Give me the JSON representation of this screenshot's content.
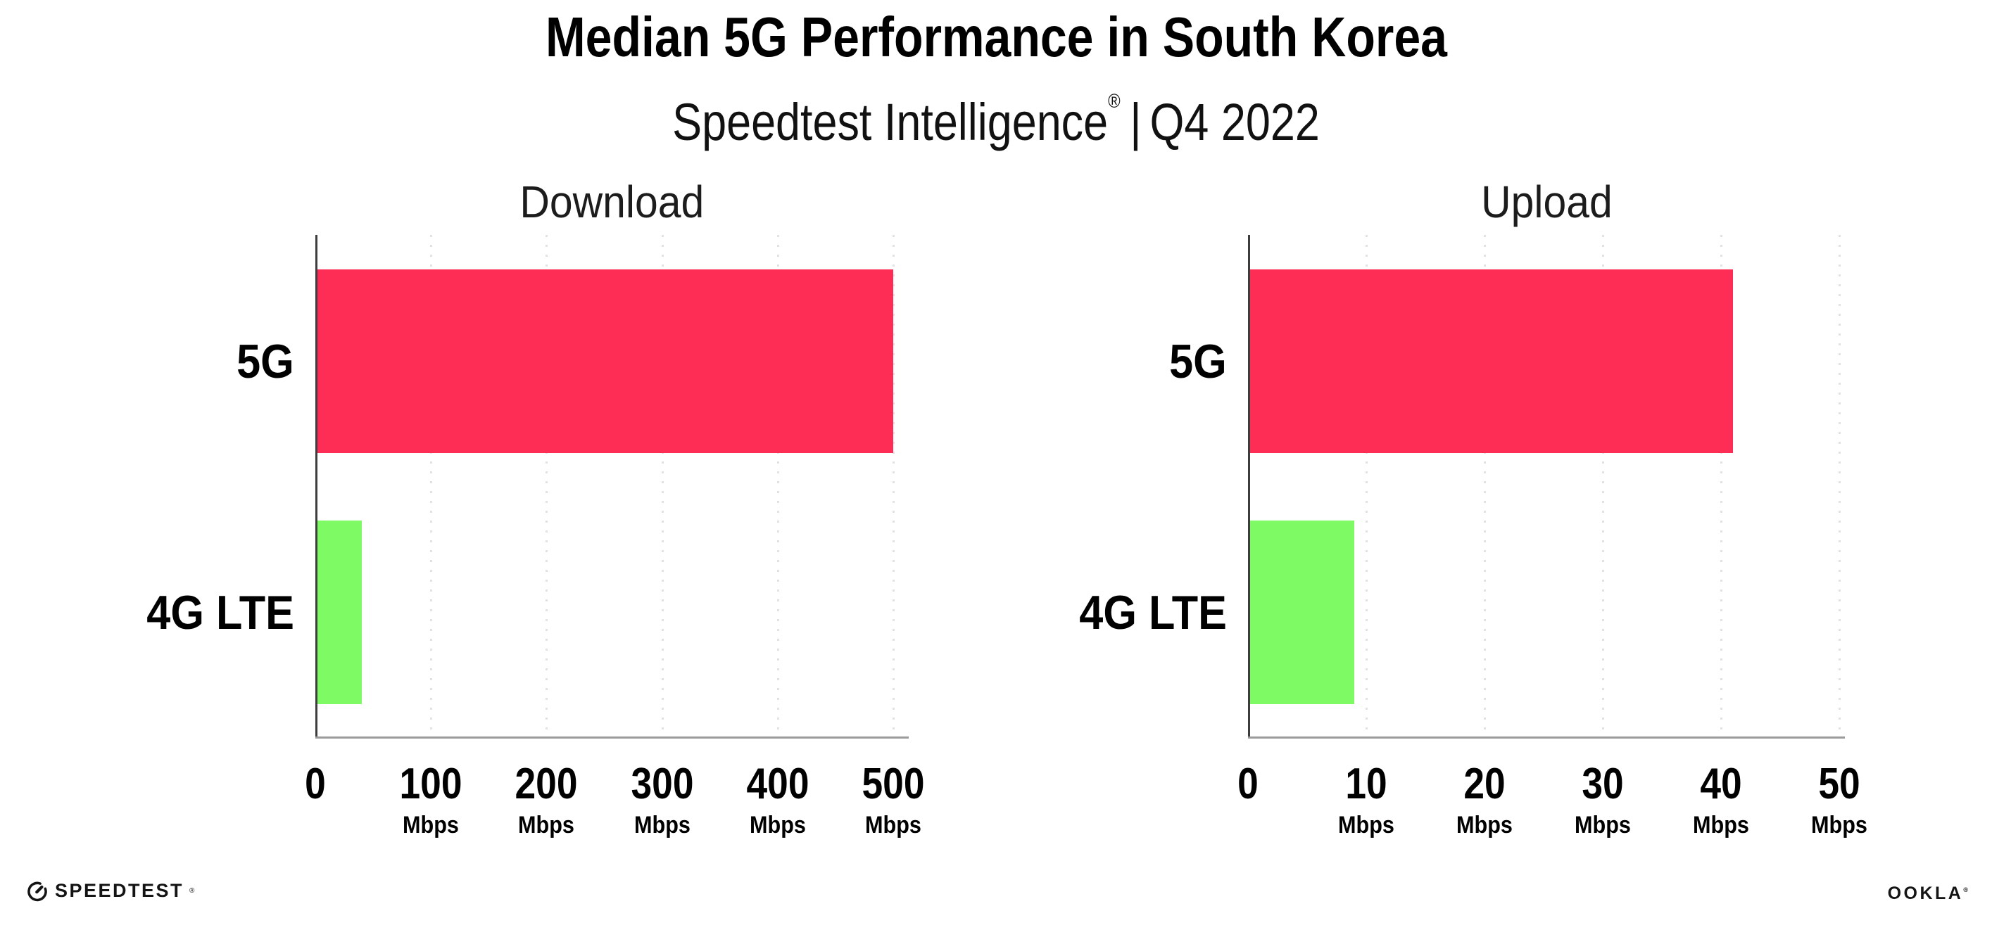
{
  "header": {
    "title": "Median 5G Performance in South Korea",
    "subtitle_brand": "Speedtest Intelligence",
    "subtitle_reg": "®",
    "subtitle_sep": "|",
    "subtitle_period": "Q4 2022"
  },
  "chart_data": [
    {
      "type": "bar",
      "orientation": "horizontal",
      "title": "Download",
      "categories": [
        "5G",
        "4G LTE"
      ],
      "values": [
        500,
        40
      ],
      "unit": "Mbps",
      "xticks": [
        0,
        100,
        200,
        300,
        400,
        500
      ],
      "xlim": [
        0,
        513
      ],
      "grid": "dotted-vertical",
      "legend": "none",
      "bar_colors": {
        "5G": "#fe2d56",
        "4G LTE": "#7dfa64"
      }
    },
    {
      "type": "bar",
      "orientation": "horizontal",
      "title": "Upload",
      "categories": [
        "5G",
        "4G LTE"
      ],
      "values": [
        41,
        9
      ],
      "unit": "Mbps",
      "xticks": [
        0,
        10,
        20,
        30,
        40,
        50
      ],
      "xlim": [
        0,
        50.5
      ],
      "grid": "dotted-vertical",
      "legend": "none",
      "bar_colors": {
        "5G": "#fe2d56",
        "4G LTE": "#7dfa64"
      }
    }
  ],
  "footer": {
    "speedtest_label": "SPEEDTEST",
    "speedtest_reg": "®",
    "ookla_label": "OOKLA",
    "ookla_reg": "®"
  },
  "colors": {
    "background": "#ffffff",
    "bar_5g": "#fe2d56",
    "bar_4g_lte": "#7dfa64",
    "axis_y": "#3d3d3d",
    "axis_x": "#9b9b9b",
    "gridline": "#e1e1e6",
    "text": "#0a0a0a"
  }
}
